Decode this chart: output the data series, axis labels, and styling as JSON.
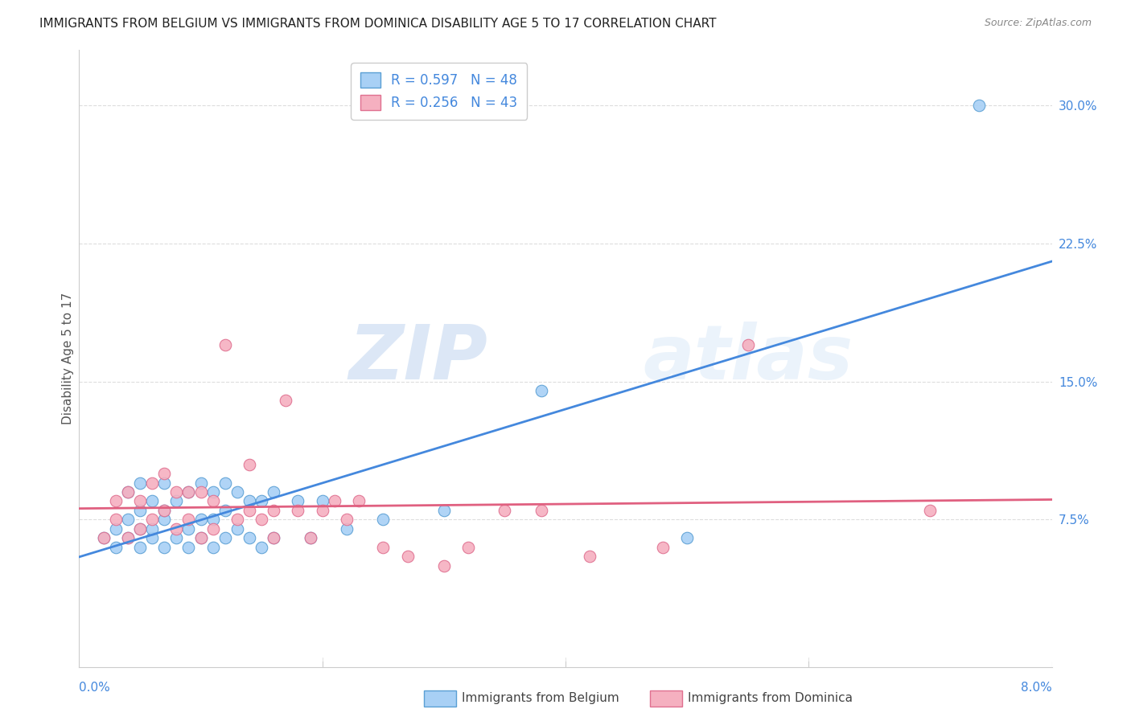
{
  "title": "IMMIGRANTS FROM BELGIUM VS IMMIGRANTS FROM DOMINICA DISABILITY AGE 5 TO 17 CORRELATION CHART",
  "source": "Source: ZipAtlas.com",
  "ylabel": "Disability Age 5 to 17",
  "ytick_labels": [
    "7.5%",
    "15.0%",
    "22.5%",
    "30.0%"
  ],
  "ytick_values": [
    0.075,
    0.15,
    0.225,
    0.3
  ],
  "xlim": [
    0.0,
    0.08
  ],
  "ylim": [
    -0.005,
    0.33
  ],
  "belgium_color": "#a8d0f5",
  "belgium_edge": "#5a9fd4",
  "dominica_color": "#f5b0c0",
  "dominica_edge": "#e07090",
  "belgium_line_color": "#4488dd",
  "dominica_line_color": "#e06080",
  "legend_R_belgium": "R = 0.597",
  "legend_N_belgium": "N = 48",
  "legend_R_dominica": "R = 0.256",
  "legend_N_dominica": "N = 43",
  "watermark_zip": "ZIP",
  "watermark_atlas": "atlas",
  "belgium_x": [
    0.002,
    0.003,
    0.003,
    0.004,
    0.004,
    0.004,
    0.005,
    0.005,
    0.005,
    0.005,
    0.006,
    0.006,
    0.006,
    0.007,
    0.007,
    0.007,
    0.007,
    0.008,
    0.008,
    0.009,
    0.009,
    0.009,
    0.01,
    0.01,
    0.01,
    0.011,
    0.011,
    0.011,
    0.012,
    0.012,
    0.012,
    0.013,
    0.013,
    0.014,
    0.014,
    0.015,
    0.015,
    0.016,
    0.016,
    0.018,
    0.019,
    0.02,
    0.022,
    0.025,
    0.03,
    0.038,
    0.05,
    0.074
  ],
  "belgium_y": [
    0.065,
    0.07,
    0.06,
    0.065,
    0.075,
    0.09,
    0.06,
    0.07,
    0.08,
    0.095,
    0.065,
    0.07,
    0.085,
    0.06,
    0.075,
    0.08,
    0.095,
    0.065,
    0.085,
    0.06,
    0.07,
    0.09,
    0.065,
    0.075,
    0.095,
    0.06,
    0.075,
    0.09,
    0.065,
    0.08,
    0.095,
    0.07,
    0.09,
    0.065,
    0.085,
    0.06,
    0.085,
    0.065,
    0.09,
    0.085,
    0.065,
    0.085,
    0.07,
    0.075,
    0.08,
    0.145,
    0.065,
    0.3
  ],
  "dominica_x": [
    0.002,
    0.003,
    0.003,
    0.004,
    0.004,
    0.005,
    0.005,
    0.006,
    0.006,
    0.007,
    0.007,
    0.008,
    0.008,
    0.009,
    0.009,
    0.01,
    0.01,
    0.011,
    0.011,
    0.012,
    0.013,
    0.014,
    0.014,
    0.015,
    0.016,
    0.016,
    0.017,
    0.018,
    0.019,
    0.02,
    0.021,
    0.022,
    0.023,
    0.025,
    0.027,
    0.03,
    0.032,
    0.035,
    0.038,
    0.042,
    0.048,
    0.055,
    0.07
  ],
  "dominica_y": [
    0.065,
    0.075,
    0.085,
    0.065,
    0.09,
    0.07,
    0.085,
    0.075,
    0.095,
    0.08,
    0.1,
    0.07,
    0.09,
    0.075,
    0.09,
    0.065,
    0.09,
    0.07,
    0.085,
    0.17,
    0.075,
    0.08,
    0.105,
    0.075,
    0.065,
    0.08,
    0.14,
    0.08,
    0.065,
    0.08,
    0.085,
    0.075,
    0.085,
    0.06,
    0.055,
    0.05,
    0.06,
    0.08,
    0.08,
    0.055,
    0.06,
    0.17,
    0.08
  ],
  "grid_color": "#dddddd",
  "spine_color": "#cccccc",
  "tick_color": "#4488dd",
  "ylabel_color": "#555555",
  "title_color": "#222222",
  "source_color": "#888888"
}
